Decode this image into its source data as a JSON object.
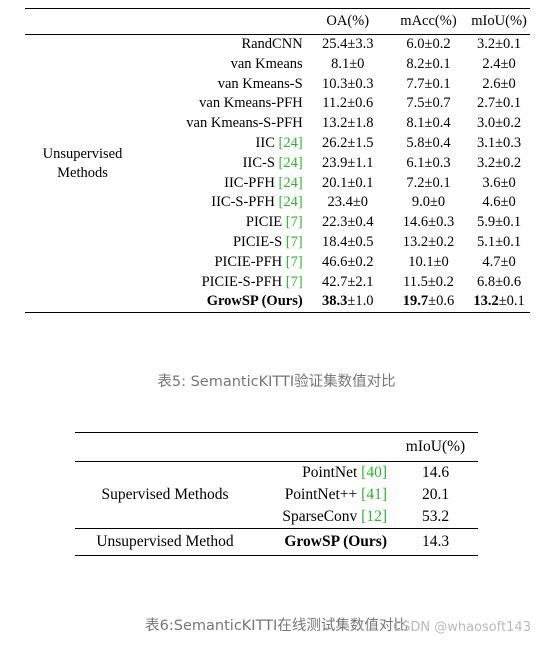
{
  "table5": {
    "headers": [
      "OA(%)",
      "mAcc(%)",
      "mIoU(%)"
    ],
    "group_label_line1": "Unsupervised",
    "group_label_line2": "Methods",
    "rows": [
      {
        "method": "RandCNN",
        "ref": "",
        "oa": "25.4±3.3",
        "macc": "6.0±0.2",
        "miou": "3.2±0.1"
      },
      {
        "method": "van Kmeans",
        "ref": "",
        "oa": "8.1±0",
        "macc": "8.2±0.1",
        "miou": "2.4±0"
      },
      {
        "method": "van Kmeans-S",
        "ref": "",
        "oa": "10.3±0.3",
        "macc": "7.7±0.1",
        "miou": "2.6±0"
      },
      {
        "method": "van Kmeans-PFH",
        "ref": "",
        "oa": "11.2±0.6",
        "macc": "7.5±0.7",
        "miou": "2.7±0.1"
      },
      {
        "method": "van Kmeans-S-PFH",
        "ref": "",
        "oa": "13.2±1.8",
        "macc": "8.1±0.4",
        "miou": "3.0±0.2"
      },
      {
        "method": "IIC ",
        "ref": "[24]",
        "oa": "26.2±1.5",
        "macc": "5.8±0.4",
        "miou": "3.1±0.3"
      },
      {
        "method": "IIC-S ",
        "ref": "[24]",
        "oa": "23.9±1.1",
        "macc": "6.1±0.3",
        "miou": "3.2±0.2"
      },
      {
        "method": "IIC-PFH ",
        "ref": "[24]",
        "oa": "20.1±0.1",
        "macc": "7.2±0.1",
        "miou": "3.6±0"
      },
      {
        "method": "IIC-S-PFH ",
        "ref": "[24]",
        "oa": "23.4±0",
        "macc": "9.0±0",
        "miou": "4.6±0"
      },
      {
        "method": "PICIE ",
        "ref": "[7]",
        "oa": "22.3±0.4",
        "macc": "14.6±0.3",
        "miou": "5.9±0.1"
      },
      {
        "method": "PICIE-S ",
        "ref": "[7]",
        "oa": "18.4±0.5",
        "macc": "13.2±0.2",
        "miou": "5.1±0.1"
      },
      {
        "method": "PICIE-PFH ",
        "ref": "[7]",
        "oa": "46.6±0.2",
        "macc": "10.1±0",
        "miou": "4.7±0"
      },
      {
        "method": "PICIE-S-PFH ",
        "ref": "[7]",
        "oa": "42.7±2.1",
        "macc": "11.5±0.2",
        "miou": "6.8±0.6"
      }
    ],
    "ours": {
      "method": "GrowSP (Ours)",
      "oa_main": "38.3",
      "oa_pm": "±1.0",
      "macc_main": "19.7",
      "macc_pm": "±0.6",
      "miou_main": "13.2",
      "miou_pm": "±0.1"
    },
    "caption": "表5: SemanticKITTI验证集数值对比"
  },
  "table6": {
    "header": "mIoU(%)",
    "supervised_label": "Supervised Methods",
    "rows": [
      {
        "method": "PointNet ",
        "ref": "[40]",
        "miou": "14.6"
      },
      {
        "method": "PointNet++ ",
        "ref": "[41]",
        "miou": "20.1"
      },
      {
        "method": "SparseConv ",
        "ref": "[12]",
        "miou": "53.2"
      }
    ],
    "unsupervised_label": "Unsupervised Method",
    "ours_method": "GrowSP (Ours)",
    "ours_miou": "14.3",
    "caption": "表6:SemanticKITTI在线测试集数值对比"
  },
  "watermark": "CSDN @whaosoft143"
}
